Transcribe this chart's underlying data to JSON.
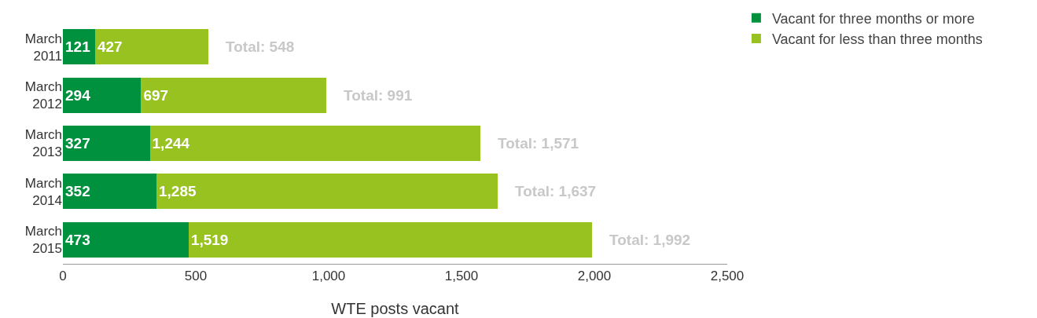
{
  "chart_data": {
    "type": "bar",
    "orientation": "horizontal",
    "stacked": true,
    "xlabel": "WTE posts vacant",
    "categories": [
      "March 2011",
      "March 2012",
      "March 2013",
      "March 2014",
      "March 2015"
    ],
    "series": [
      {
        "name": "Vacant for three months or more",
        "color": "#00913f",
        "values": [
          121,
          294,
          327,
          352,
          473
        ],
        "value_labels": [
          "121",
          "294",
          "327",
          "352",
          "473"
        ]
      },
      {
        "name": "Vacant for less than three months",
        "color": "#97c21f",
        "values": [
          427,
          697,
          1244,
          1285,
          1519
        ],
        "value_labels": [
          "427",
          "697",
          "1,244",
          "1,285",
          "1,519"
        ]
      }
    ],
    "totals": [
      "Total: 548",
      "Total: 991",
      "Total: 1,571",
      "Total: 1,637",
      "Total: 1,992"
    ],
    "xlim": [
      0,
      2500
    ],
    "xticks": [
      {
        "value": 0,
        "label": "0"
      },
      {
        "value": 500,
        "label": "500"
      },
      {
        "value": 1000,
        "label": "1,000"
      },
      {
        "value": 1500,
        "label": "1,500"
      },
      {
        "value": 2000,
        "label": "2,000"
      },
      {
        "value": 2500,
        "label": "2,500"
      }
    ],
    "legend": "top right"
  }
}
